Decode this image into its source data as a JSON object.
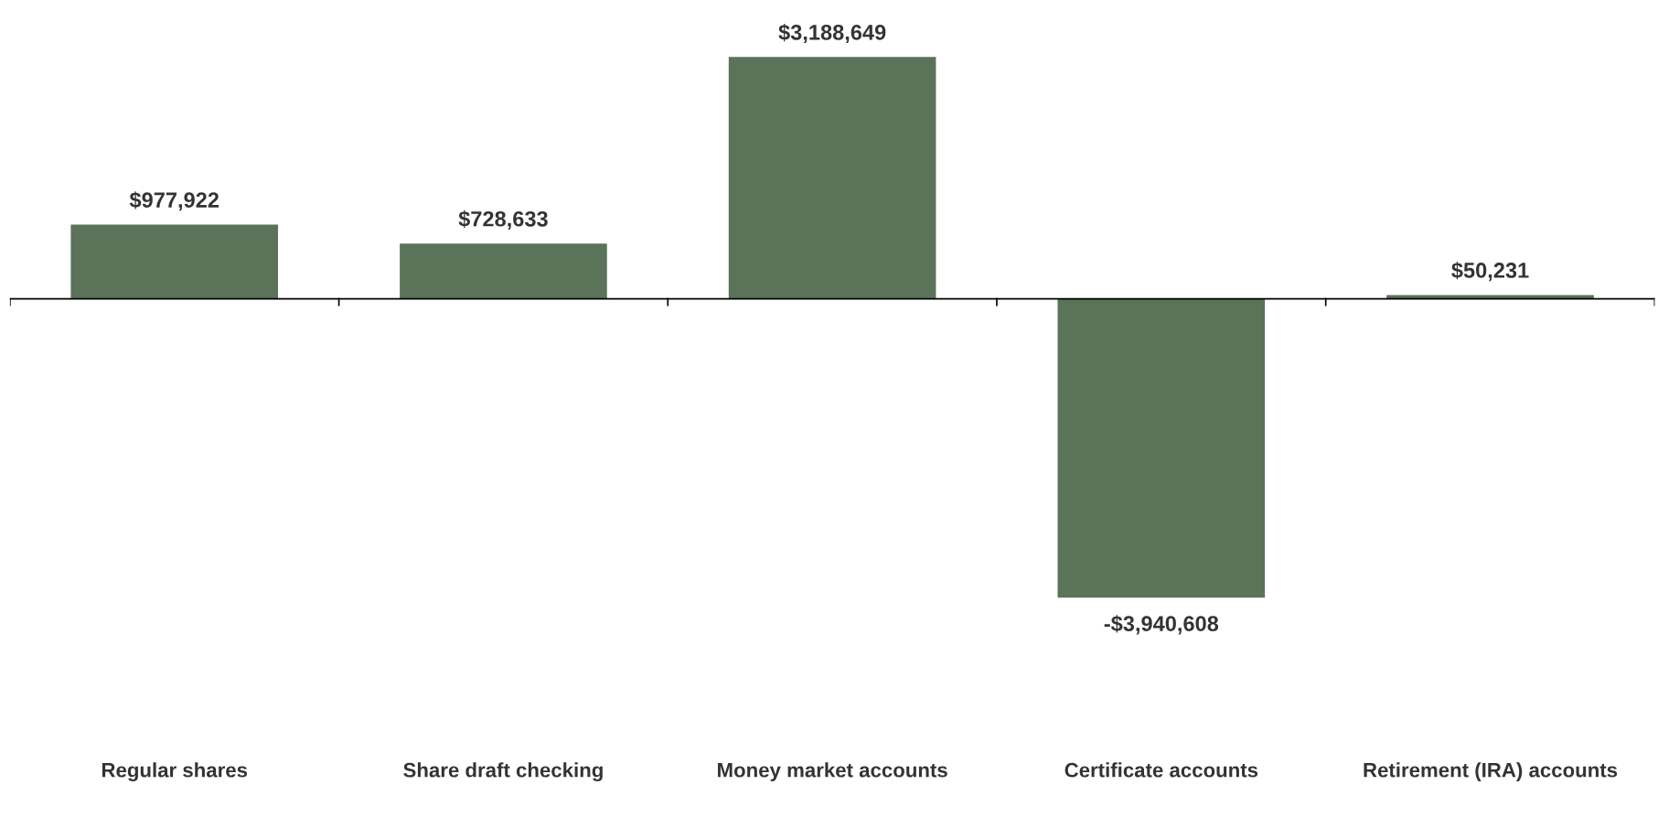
{
  "chart_data": {
    "type": "bar",
    "categories": [
      "Regular shares",
      "Share draft checking",
      "Money market accounts",
      "Certificate accounts",
      "Retirement (IRA) accounts"
    ],
    "values": [
      977922,
      728633,
      3188649,
      -3940608,
      50231
    ],
    "value_labels": [
      "$977,922",
      "$728,633",
      "$3,188,649",
      "-$3,940,608",
      "$50,231"
    ],
    "color": "#5a7359",
    "grid": false,
    "legend": false
  }
}
